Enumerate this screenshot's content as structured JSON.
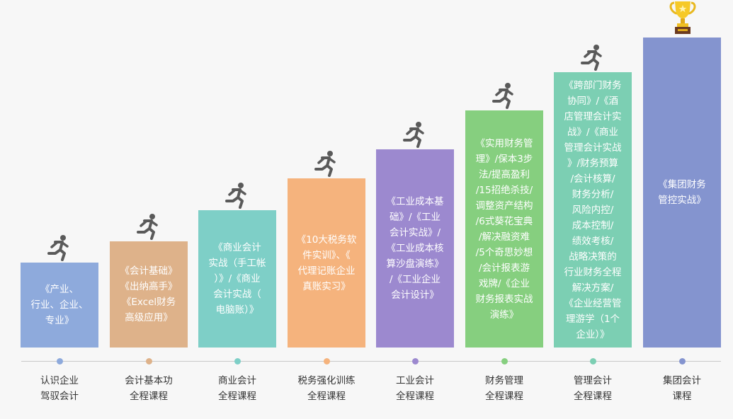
{
  "colors": {
    "background": "#f7f7f7",
    "runner_icon": "#5a5a5a",
    "timeline": "#c8c8c8",
    "label_text": "#333333"
  },
  "stages": [
    {
      "bar_text": "《产业、\n行业、企业、\n专业》",
      "label": "认识企业\n驾驭会计",
      "color": "#8eaadc",
      "icon": "runner-icon"
    },
    {
      "bar_text": "《会计基础》\n《出纳高手》\n《Excel财务\n高级应用》",
      "label": "会计基本功\n全程课程",
      "color": "#deb28a",
      "icon": "runner-icon"
    },
    {
      "bar_text": "《商业会计\n实战（手工帐\n）》/《商业\n会计实战（\n电脑账）》",
      "label": "商业会计\n全程课程",
      "color": "#7ecfc7",
      "icon": "runner-icon"
    },
    {
      "bar_text": "《10大税务软\n件实训》、《\n代理记账企业\n真账实习》",
      "label": "税务强化训练\n全程课程",
      "color": "#f5b37d",
      "icon": "runner-icon"
    },
    {
      "bar_text": "《工业成本基\n础》/《工业\n会计实战》/\n《工业成本核\n算沙盘演练》\n/《工业企业\n会计设计》",
      "label": "工业会计\n全程课程",
      "color": "#9c89cf",
      "icon": "runner-icon"
    },
    {
      "bar_text": "《实用财务管\n理》/保本3步\n法/提高盈利\n/15招绝杀技/\n调整资产结构\n/6式葵花宝典\n/解决融资难\n/5个奇思妙想\n/会计报表游\n戏牌/《企业\n财务报表实战\n演练》",
      "label": "财务管理\n全程课程",
      "color": "#86cf7f",
      "icon": "runner-icon"
    },
    {
      "bar_text": "《跨部门财务\n协同》/《酒\n店管理会计实\n战》/《商业\n管理会计实战\n》/财务预算\n/会计核算/\n财务分析/\n风险内控/\n成本控制/\n绩效考核/\n战略决策的\n行业财务全程\n解决方案/\n《企业经营管\n理游学（1个\n企业）》",
      "label": "管理会计\n全程课程",
      "color": "#7ccfb3",
      "icon": "runner-icon"
    },
    {
      "bar_text": "《集团财务\n管控实战》",
      "label": "集团会计\n课程",
      "color": "#8494cf",
      "icon": "trophy-icon"
    }
  ]
}
